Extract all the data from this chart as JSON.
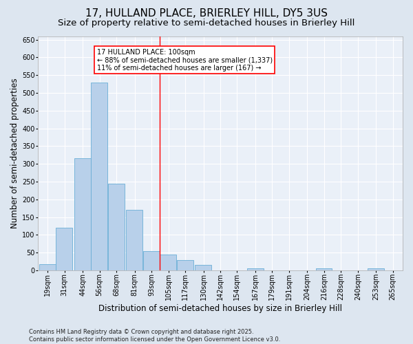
{
  "title1": "17, HULLAND PLACE, BRIERLEY HILL, DY5 3US",
  "title2": "Size of property relative to semi-detached houses in Brierley Hill",
  "xlabel": "Distribution of semi-detached houses by size in Brierley Hill",
  "ylabel": "Number of semi-detached properties",
  "bins": [
    19,
    31,
    44,
    56,
    68,
    81,
    93,
    105,
    117,
    130,
    142,
    154,
    167,
    179,
    191,
    204,
    216,
    228,
    240,
    253,
    265
  ],
  "values": [
    18,
    120,
    315,
    530,
    245,
    170,
    55,
    45,
    28,
    15,
    0,
    0,
    5,
    0,
    0,
    0,
    5,
    0,
    0,
    5,
    0
  ],
  "bar_color": "#b8d0ea",
  "bar_edge_color": "#6aaed6",
  "vline_x": 105,
  "vline_color": "red",
  "annotation_text": "17 HULLAND PLACE: 100sqm\n← 88% of semi-detached houses are smaller (1,337)\n11% of semi-detached houses are larger (167) →",
  "annotation_box_color": "white",
  "annotation_box_edge_color": "red",
  "ylim": [
    0,
    660
  ],
  "yticks": [
    0,
    50,
    100,
    150,
    200,
    250,
    300,
    350,
    400,
    450,
    500,
    550,
    600,
    650
  ],
  "background_color": "#dde6f0",
  "plot_bg_color": "#eaf0f8",
  "footnote": "Contains HM Land Registry data © Crown copyright and database right 2025.\nContains public sector information licensed under the Open Government Licence v3.0.",
  "title1_fontsize": 11,
  "title2_fontsize": 9.5,
  "tick_fontsize": 7,
  "label_fontsize": 8.5,
  "footnote_fontsize": 6,
  "annot_fontsize": 7
}
